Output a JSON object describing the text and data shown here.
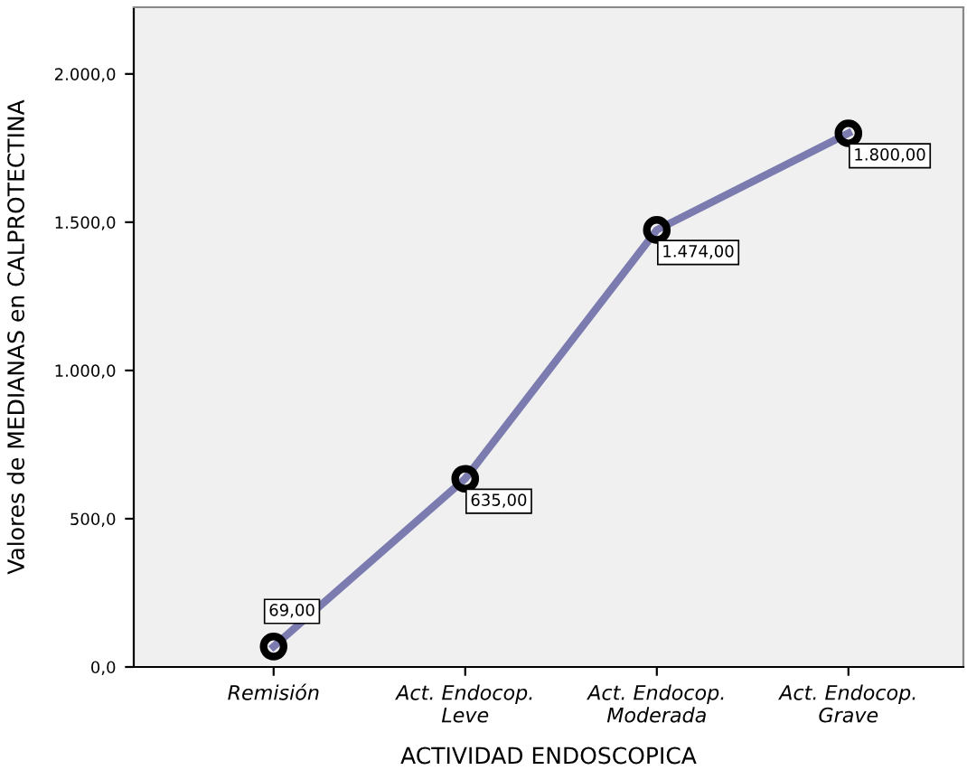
{
  "chart_data": {
    "type": "line",
    "xlabel": "ACTIVIDAD ENDOSCOPICA",
    "ylabel": "Valores de MEDIANAS en CALPROTECTINA",
    "categories": [
      "Remisión",
      "Act. Endocop.\nLeve",
      "Act. Endocop.\nModerada",
      "Act. Endocop.\nGrave"
    ],
    "series": [
      {
        "color": "#7b7bb0",
        "values": [
          69,
          635,
          1474,
          1800
        ],
        "value_labels": [
          "69,00",
          "635,00",
          "1.474,00",
          "1.800,00"
        ]
      }
    ],
    "ylim": [
      0,
      2225
    ],
    "yticks": [
      {
        "value": 0,
        "label": "0,0"
      },
      {
        "value": 500,
        "label": "500,0"
      },
      {
        "value": 1000,
        "label": "1.000,0"
      },
      {
        "value": 1500,
        "label": "1.500,0"
      },
      {
        "value": 2000,
        "label": "2.000,0"
      }
    ],
    "grid": false,
    "legend": false,
    "marker": "circle",
    "line_style": "solid"
  }
}
